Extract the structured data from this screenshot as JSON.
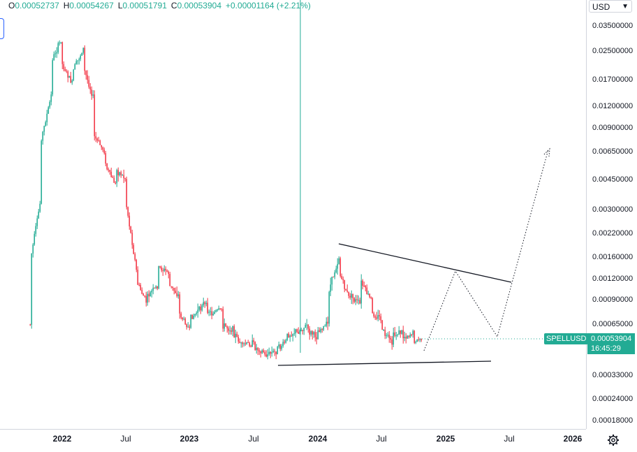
{
  "ohlc": {
    "o_key": "O",
    "o_val": "0.00052737",
    "h_key": "H",
    "h_val": "0.00054267",
    "l_key": "L",
    "l_val": "0.00051791",
    "c_key": "C",
    "c_val": "0.00053904",
    "change": "+0.00001164 (+2.21%)"
  },
  "currency": "USD",
  "symbol": "SPELLUSD",
  "last_price": "0.00053904",
  "countdown": "16:45:29",
  "colors": {
    "up": "#22ab94",
    "down": "#f23645",
    "accent": "#22ab94",
    "drawing": "#131722",
    "crosshair_line": "#22ab94"
  },
  "icons": {
    "settings": "gear-icon",
    "currency_caret": "chevron-down-icon"
  },
  "chart_data": {
    "type": "candlestick",
    "scale": "log",
    "y_ticks": [
      "0.03500000",
      "0.02500000",
      "0.01700000",
      "0.01200000",
      "0.00900000",
      "0.00650000",
      "0.00450000",
      "0.00300000",
      "0.00220000",
      "0.00160000",
      "0.00120000",
      "0.00090000",
      "0.00065000",
      "0.00033000",
      "0.00024000",
      "0.00018000"
    ],
    "x_ticks": [
      {
        "label": "2022",
        "year": true
      },
      {
        "label": "Jul",
        "year": false
      },
      {
        "label": "2023",
        "year": true
      },
      {
        "label": "Jul",
        "year": false
      },
      {
        "label": "2024",
        "year": true
      },
      {
        "label": "Jul",
        "year": false
      },
      {
        "label": "2025",
        "year": true
      },
      {
        "label": "Jul",
        "year": false
      },
      {
        "label": "2026",
        "year": true
      }
    ],
    "series": [
      {
        "x": "2021-10",
        "y": 0.00065
      },
      {
        "x": "2021-10",
        "y": 0.0011
      },
      {
        "x": "2021-10",
        "y": 0.0015
      },
      {
        "x": "2021-11",
        "y": 0.0035
      },
      {
        "x": "2021-11",
        "y": 0.0075
      },
      {
        "x": "2021-12",
        "y": 0.014
      },
      {
        "x": "2021-12",
        "y": 0.022
      },
      {
        "x": "2022-01",
        "y": 0.03
      },
      {
        "x": "2022-01",
        "y": 0.026
      },
      {
        "x": "2022-01",
        "y": 0.021
      },
      {
        "x": "2022-02",
        "y": 0.016
      },
      {
        "x": "2022-02",
        "y": 0.019
      },
      {
        "x": "2022-03",
        "y": 0.026
      },
      {
        "x": "2022-03",
        "y": 0.02
      },
      {
        "x": "2022-04",
        "y": 0.013
      },
      {
        "x": "2022-04",
        "y": 0.008
      },
      {
        "x": "2022-05",
        "y": 0.0065
      },
      {
        "x": "2022-05",
        "y": 0.0055
      },
      {
        "x": "2022-06",
        "y": 0.0042
      },
      {
        "x": "2022-06",
        "y": 0.0052
      },
      {
        "x": "2022-07",
        "y": 0.0045
      },
      {
        "x": "2022-07",
        "y": 0.0033
      },
      {
        "x": "2022-08",
        "y": 0.0013
      },
      {
        "x": "2022-08",
        "y": 0.00115
      },
      {
        "x": "2022-09",
        "y": 0.00085
      },
      {
        "x": "2022-09",
        "y": 0.00095
      },
      {
        "x": "2022-10",
        "y": 0.0011
      },
      {
        "x": "2022-10",
        "y": 0.0014
      },
      {
        "x": "2022-11",
        "y": 0.0013
      },
      {
        "x": "2022-11",
        "y": 0.0011
      },
      {
        "x": "2022-12",
        "y": 0.00095
      },
      {
        "x": "2022-12",
        "y": 0.00075
      },
      {
        "x": "2023-01",
        "y": 0.0006
      },
      {
        "x": "2023-01",
        "y": 0.0007
      },
      {
        "x": "2023-02",
        "y": 0.0008
      },
      {
        "x": "2023-02",
        "y": 0.0009
      },
      {
        "x": "2023-03",
        "y": 0.00075
      },
      {
        "x": "2023-04",
        "y": 0.0008
      },
      {
        "x": "2023-04",
        "y": 0.00065
      },
      {
        "x": "2023-05",
        "y": 0.0006
      },
      {
        "x": "2023-06",
        "y": 0.00047
      },
      {
        "x": "2023-06",
        "y": 0.0005
      },
      {
        "x": "2023-07",
        "y": 0.0005
      },
      {
        "x": "2023-07",
        "y": 0.00048
      },
      {
        "x": "2023-08",
        "y": 0.00045
      },
      {
        "x": "2023-08",
        "y": 0.00043
      },
      {
        "x": "2023-09",
        "y": 0.00045
      },
      {
        "x": "2023-10",
        "y": 0.00052
      },
      {
        "x": "2023-10",
        "y": 0.00055
      },
      {
        "x": "2023-11",
        "y": 0.0006
      },
      {
        "x": "2023-11",
        "y": 0.00058
      },
      {
        "x": "2023-12",
        "y": 0.00065
      },
      {
        "x": "2023-12",
        "y": 0.0006
      },
      {
        "x": "2024-01",
        "y": 0.00055
      },
      {
        "x": "2024-01",
        "y": 0.0006
      },
      {
        "x": "2024-02",
        "y": 0.00065
      },
      {
        "x": "2024-02",
        "y": 0.001
      },
      {
        "x": "2024-03",
        "y": 0.0016
      },
      {
        "x": "2024-03",
        "y": 0.0013
      },
      {
        "x": "2024-04",
        "y": 0.0009
      },
      {
        "x": "2024-04",
        "y": 0.00095
      },
      {
        "x": "2024-05",
        "y": 0.00085
      },
      {
        "x": "2024-05",
        "y": 0.00115
      },
      {
        "x": "2024-06",
        "y": 0.0009
      },
      {
        "x": "2024-06",
        "y": 0.00075
      },
      {
        "x": "2024-07",
        "y": 0.0007
      },
      {
        "x": "2024-07",
        "y": 0.0006
      },
      {
        "x": "2024-08",
        "y": 0.0005
      },
      {
        "x": "2024-08",
        "y": 0.00055
      },
      {
        "x": "2024-09",
        "y": 0.0006
      },
      {
        "x": "2024-09",
        "y": 0.00055
      },
      {
        "x": "2024-10",
        "y": 0.00058
      },
      {
        "x": "2024-10",
        "y": 0.00052
      },
      {
        "x": "2024-11",
        "y": 0.00054
      }
    ]
  }
}
